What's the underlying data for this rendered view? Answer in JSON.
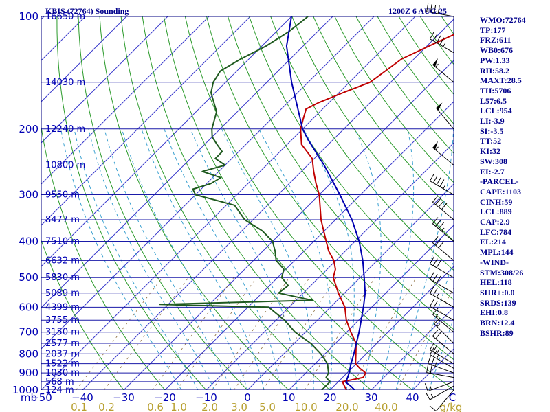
{
  "header": {
    "station": "KBIS (72764) Sounding",
    "time": "1200Z  6 AUG 25"
  },
  "indices": [
    "WMO:72764",
    "TP:177",
    "FRZ:611",
    "WB0:676",
    "PW:1.33",
    "RH:58.2",
    "MAXT:28.5",
    "TH:5706",
    "L57:6.5",
    "LCL:954",
    "LI:-3.9",
    "SI:-3.5",
    "TT:52",
    "KI:32",
    "SW:308",
    "EI:-2.7",
    "-PARCEL-",
    "CAPE:1103",
    "CINH:59",
    "LCL:889",
    "CAP:2.9",
    "LFC:784",
    "EL:214",
    "MPL:144",
    "-WIND-",
    "STM:308/26",
    "HEL:118",
    "SHR+:0.0",
    "SRDS:139",
    "EHI:0.8",
    "BRN:12.4",
    "BSHR:89"
  ],
  "colors": {
    "isobar": "#1a1aa8",
    "isotherm": "#3b3bcc",
    "dry_adiabat": "#2a9a2a",
    "moist_adiabat": "#3aa0d0",
    "mixing_ratio": "#8a6a3a",
    "temperature": "#c00000",
    "dewpoint": "#1f5a1f",
    "parcel": "#0000b0",
    "wind": "#000000"
  },
  "chart_data": {
    "type": "line",
    "title": "KBIS (72764) Sounding",
    "xlabel": "",
    "ylabel": "mb",
    "pressure_range": [
      1000,
      100
    ],
    "temp_range_at_1000mb": [
      -50,
      50
    ],
    "log_pressure_axis": true,
    "skew_t": true,
    "isobars": [
      {
        "p": 100,
        "label": "100",
        "height": "16650 m"
      },
      {
        "p": 150,
        "label": "",
        "height": "14030 m"
      },
      {
        "p": 200,
        "label": "200",
        "height": "12240 m"
      },
      {
        "p": 250,
        "label": "",
        "height": "10800 m"
      },
      {
        "p": 300,
        "label": "300",
        "height": "9550 m"
      },
      {
        "p": 350,
        "label": "",
        "height": "8477 m"
      },
      {
        "p": 400,
        "label": "400",
        "height": "7510 m"
      },
      {
        "p": 450,
        "label": "",
        "height": "6632 m"
      },
      {
        "p": 500,
        "label": "500",
        "height": "5830 m"
      },
      {
        "p": 550,
        "label": "",
        "height": "5089 m"
      },
      {
        "p": 600,
        "label": "600",
        "height": "4399 m"
      },
      {
        "p": 650,
        "label": "",
        "height": "3755 m"
      },
      {
        "p": 700,
        "label": "700",
        "height": "3150 m"
      },
      {
        "p": 750,
        "label": "",
        "height": "2577 m"
      },
      {
        "p": 800,
        "label": "800",
        "height": "2037 m"
      },
      {
        "p": 850,
        "label": "",
        "height": "1522 m"
      },
      {
        "p": 900,
        "label": "900",
        "height": "1030 m"
      },
      {
        "p": 950,
        "label": "",
        "height": "568 m"
      },
      {
        "p": 1000,
        "label": "1000",
        "height": "124 m"
      }
    ],
    "temperature_ticks": [
      "mb",
      "−50",
      "−40",
      "−30",
      "−20",
      "−10",
      "0",
      "10",
      "20",
      "30",
      "40",
      "C"
    ],
    "mixing_ratio_ticks": [
      "0.1",
      "0.2",
      "0.6",
      "1.0",
      "2.0",
      "3.0",
      "5.0",
      "10.0",
      "20.0",
      "40.0",
      "g/kg"
    ],
    "series": [
      {
        "key": "temperature",
        "points": [
          [
            1000,
            24
          ],
          [
            975,
            22.5
          ],
          [
            950,
            21
          ],
          [
            925,
            25
          ],
          [
            900,
            24.5
          ],
          [
            875,
            22
          ],
          [
            850,
            19.8
          ],
          [
            800,
            17.5
          ],
          [
            750,
            15
          ],
          [
            700,
            11
          ],
          [
            650,
            7
          ],
          [
            600,
            3.5
          ],
          [
            550,
            -1.5
          ],
          [
            500,
            -6.5
          ],
          [
            475,
            -8
          ],
          [
            450,
            -10.5
          ],
          [
            425,
            -14
          ],
          [
            400,
            -17
          ],
          [
            350,
            -23.5
          ],
          [
            300,
            -30
          ],
          [
            280,
            -33.5
          ],
          [
            260,
            -37
          ],
          [
            240,
            -40.5
          ],
          [
            220,
            -46.5
          ],
          [
            200,
            -50.5
          ],
          [
            190,
            -52
          ],
          [
            180,
            -53.5
          ],
          [
            177,
            -54
          ],
          [
            170,
            -52.5
          ],
          [
            160,
            -49
          ],
          [
            150,
            -45
          ],
          [
            140,
            -44
          ],
          [
            130,
            -43
          ],
          [
            120,
            -39.5
          ],
          [
            110,
            -35.5
          ],
          [
            100,
            -30.5
          ]
        ]
      },
      {
        "key": "dewpoint",
        "points": [
          [
            1000,
            18
          ],
          [
            975,
            18
          ],
          [
            950,
            18
          ],
          [
            925,
            16
          ],
          [
            900,
            15.5
          ],
          [
            850,
            13
          ],
          [
            800,
            9
          ],
          [
            750,
            4
          ],
          [
            700,
            -2.5
          ],
          [
            650,
            -8
          ],
          [
            600,
            -15
          ],
          [
            590,
            -42
          ],
          [
            575,
            -6
          ],
          [
            550,
            -16
          ],
          [
            525,
            -15.5
          ],
          [
            500,
            -19
          ],
          [
            475,
            -20.5
          ],
          [
            450,
            -24.5
          ],
          [
            425,
            -27
          ],
          [
            400,
            -30
          ],
          [
            375,
            -35
          ],
          [
            350,
            -42
          ],
          [
            320,
            -48
          ],
          [
            300,
            -60
          ],
          [
            290,
            -62
          ],
          [
            280,
            -59
          ],
          [
            270,
            -58
          ],
          [
            260,
            -64
          ],
          [
            250,
            -60
          ],
          [
            240,
            -64
          ],
          [
            230,
            -64
          ],
          [
            220,
            -67
          ],
          [
            210,
            -70
          ],
          [
            200,
            -72
          ],
          [
            180,
            -75
          ],
          [
            160,
            -81
          ],
          [
            150,
            -83
          ],
          [
            140,
            -84
          ],
          [
            130,
            -82
          ],
          [
            120,
            -79
          ],
          [
            110,
            -77
          ],
          [
            100,
            -76
          ]
        ]
      },
      {
        "key": "parcel",
        "points": [
          [
            1000,
            26
          ],
          [
            975,
            24
          ],
          [
            954,
            22
          ],
          [
            900,
            20.5
          ],
          [
            850,
            18.7
          ],
          [
            800,
            17
          ],
          [
            700,
            13
          ],
          [
            600,
            8
          ],
          [
            550,
            5
          ],
          [
            500,
            1
          ],
          [
            450,
            -3.5
          ],
          [
            400,
            -9
          ],
          [
            350,
            -16
          ],
          [
            300,
            -25
          ],
          [
            250,
            -36
          ],
          [
            214,
            -46
          ],
          [
            200,
            -50
          ],
          [
            150,
            -64
          ],
          [
            120,
            -74
          ],
          [
            100,
            -80
          ]
        ]
      }
    ],
    "wind_barbs": [
      {
        "p": 1000,
        "dir": 220,
        "spd": 10
      },
      {
        "p": 975,
        "dir": 240,
        "spd": 15
      },
      {
        "p": 950,
        "dir": 250,
        "spd": 15
      },
      {
        "p": 925,
        "dir": 280,
        "spd": 20
      },
      {
        "p": 900,
        "dir": 290,
        "spd": 25
      },
      {
        "p": 875,
        "dir": 300,
        "spd": 25
      },
      {
        "p": 850,
        "dir": 300,
        "spd": 25
      },
      {
        "p": 800,
        "dir": 310,
        "spd": 20
      },
      {
        "p": 750,
        "dir": 315,
        "spd": 15
      },
      {
        "p": 700,
        "dir": 310,
        "spd": 15
      },
      {
        "p": 650,
        "dir": 300,
        "spd": 20
      },
      {
        "p": 600,
        "dir": 300,
        "spd": 25
      },
      {
        "p": 550,
        "dir": 300,
        "spd": 30
      },
      {
        "p": 500,
        "dir": 300,
        "spd": 30
      },
      {
        "p": 450,
        "dir": 310,
        "spd": 30
      },
      {
        "p": 400,
        "dir": 310,
        "spd": 35
      },
      {
        "p": 350,
        "dir": 310,
        "spd": 40
      },
      {
        "p": 300,
        "dir": 300,
        "spd": 45
      },
      {
        "p": 250,
        "dir": 310,
        "spd": 55
      },
      {
        "p": 200,
        "dir": 320,
        "spd": 50
      },
      {
        "p": 150,
        "dir": 310,
        "spd": 55
      },
      {
        "p": 125,
        "dir": 300,
        "spd": 45
      },
      {
        "p": 100,
        "dir": 280,
        "spd": 40
      }
    ]
  }
}
